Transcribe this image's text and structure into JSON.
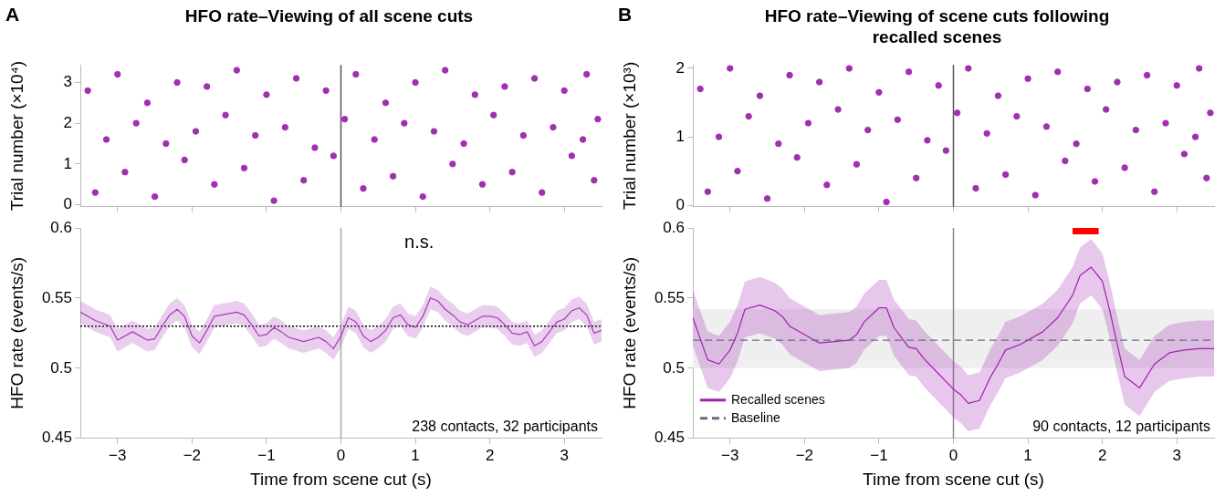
{
  "chart_data": [
    {
      "type": "scatter",
      "title": "HFO rate–Viewing of all scene cuts",
      "annotations": [
        "A"
      ],
      "ylabel": "Trial number (×10⁴)",
      "marker": "circle",
      "tick_labels": "y",
      "xlim": [
        -3.5,
        3.5
      ],
      "xticks": [
        {
          "value": -3,
          "label": null
        },
        {
          "value": -2,
          "label": null
        },
        {
          "value": -1,
          "label": null
        },
        {
          "value": 0,
          "label": null
        },
        {
          "value": 1,
          "label": null
        },
        {
          "value": 2,
          "label": null
        },
        {
          "value": 3,
          "label": null
        }
      ],
      "ylim": [
        -0.05,
        3.43
      ],
      "yticks": [
        0,
        1,
        2,
        3
      ],
      "ref_lines": [
        {
          "axis": "x",
          "value": 0,
          "color": "#555555"
        }
      ],
      "series": [
        {
          "color": "#a030b0",
          "x": [
            -3.3,
            -2.9,
            -2.5,
            -2.1,
            -1.7,
            -1.3,
            -0.9,
            -0.5,
            -0.1,
            0.3,
            0.7,
            1.1,
            1.5,
            1.9,
            2.3,
            2.7,
            3.1,
            3.4,
            -3.15,
            -2.75,
            -2.35,
            -1.95,
            -1.55,
            -1.15,
            -0.75,
            -0.35,
            0.05,
            0.45,
            0.85,
            1.25,
            1.65,
            2.05,
            2.45,
            2.85,
            3.25,
            3.45,
            -3.4,
            -3.0,
            -2.6,
            -2.2,
            -1.8,
            -1.4,
            -1.0,
            -0.6,
            -0.2,
            0.2,
            0.6,
            1.0,
            1.4,
            1.8,
            2.2,
            2.6,
            3.0,
            3.3
          ],
          "values": [
            0.3,
            0.8,
            0.2,
            1.1,
            0.5,
            0.9,
            0.1,
            0.6,
            1.2,
            0.4,
            0.7,
            0.2,
            1.0,
            0.5,
            0.8,
            0.3,
            1.2,
            0.6,
            1.6,
            2.0,
            1.5,
            1.8,
            2.2,
            1.7,
            1.9,
            1.4,
            2.1,
            1.6,
            2.0,
            1.8,
            1.5,
            2.2,
            1.7,
            1.9,
            1.6,
            2.1,
            2.8,
            3.2,
            2.5,
            3.0,
            2.9,
            3.3,
            2.7,
            3.1,
            2.8,
            3.2,
            2.5,
            3.0,
            3.3,
            2.7,
            2.9,
            3.1,
            2.8,
            3.2
          ]
        }
      ]
    },
    {
      "type": "line",
      "ylabel": "HFO rate (events/s)",
      "xlabel": "Time from scene cut (s)",
      "annotations": [
        "n.s.",
        "238 contacts, 32 participants"
      ],
      "xlim": [
        -3.5,
        3.5
      ],
      "xticks": [
        {
          "value": -3,
          "label": "−3"
        },
        {
          "value": -2,
          "label": "−2"
        },
        {
          "value": -1,
          "label": "−1"
        },
        0,
        1,
        2,
        3
      ],
      "ylim": [
        0.45,
        0.6
      ],
      "yticks": [
        0.45,
        0.5,
        0.55,
        0.6
      ],
      "ref_lines": [
        {
          "axis": "y",
          "value": 0.53,
          "color": "#000000",
          "line_style": "dotted"
        },
        {
          "axis": "x",
          "value": 0,
          "color": "#aaaaaa"
        }
      ],
      "series": [
        {
          "color": "#a83cb8",
          "x": [
            -3.5,
            -3.3,
            -3.1,
            -3.0,
            -2.8,
            -2.6,
            -2.5,
            -2.4,
            -2.3,
            -2.2,
            -2.1,
            -2.0,
            -1.9,
            -1.8,
            -1.7,
            -1.6,
            -1.4,
            -1.3,
            -1.2,
            -1.1,
            -1.0,
            -0.9,
            -0.8,
            -0.7,
            -0.5,
            -0.3,
            -0.2,
            -0.1,
            0,
            0.1,
            0.2,
            0.3,
            0.4,
            0.5,
            0.6,
            0.7,
            0.8,
            0.9,
            1.0,
            1.1,
            1.2,
            1.3,
            1.4,
            1.5,
            1.6,
            1.7,
            1.8,
            1.9,
            2.0,
            2.1,
            2.2,
            2.3,
            2.4,
            2.5,
            2.6,
            2.7,
            2.8,
            2.9,
            3.0,
            3.1,
            3.2,
            3.3,
            3.4,
            3.5
          ],
          "values": [
            0.54,
            0.534,
            0.53,
            0.52,
            0.526,
            0.52,
            0.521,
            0.53,
            0.538,
            0.542,
            0.537,
            0.523,
            0.518,
            0.527,
            0.537,
            0.538,
            0.54,
            0.538,
            0.531,
            0.523,
            0.524,
            0.529,
            0.526,
            0.522,
            0.519,
            0.522,
            0.519,
            0.514,
            0.523,
            0.536,
            0.533,
            0.523,
            0.519,
            0.522,
            0.527,
            0.536,
            0.538,
            0.531,
            0.529,
            0.537,
            0.55,
            0.548,
            0.542,
            0.538,
            0.533,
            0.531,
            0.534,
            0.537,
            0.537,
            0.536,
            0.531,
            0.525,
            0.524,
            0.526,
            0.516,
            0.519,
            0.526,
            0.533,
            0.535,
            0.541,
            0.543,
            0.538,
            0.525,
            0.527
          ],
          "lower": [
            0.532,
            0.526,
            0.522,
            0.512,
            0.518,
            0.512,
            0.513,
            0.522,
            0.53,
            0.534,
            0.529,
            0.515,
            0.51,
            0.519,
            0.529,
            0.53,
            0.532,
            0.53,
            0.523,
            0.515,
            0.516,
            0.521,
            0.518,
            0.514,
            0.511,
            0.514,
            0.511,
            0.506,
            0.515,
            0.528,
            0.525,
            0.515,
            0.511,
            0.514,
            0.519,
            0.528,
            0.53,
            0.523,
            0.521,
            0.529,
            0.542,
            0.54,
            0.534,
            0.53,
            0.525,
            0.523,
            0.526,
            0.529,
            0.529,
            0.528,
            0.523,
            0.517,
            0.516,
            0.518,
            0.508,
            0.511,
            0.518,
            0.525,
            0.527,
            0.533,
            0.535,
            0.53,
            0.517,
            0.519
          ],
          "upper": [
            0.548,
            0.542,
            0.538,
            0.528,
            0.534,
            0.528,
            0.529,
            0.538,
            0.546,
            0.55,
            0.545,
            0.531,
            0.526,
            0.535,
            0.545,
            0.546,
            0.548,
            0.546,
            0.539,
            0.531,
            0.532,
            0.537,
            0.534,
            0.53,
            0.527,
            0.53,
            0.527,
            0.522,
            0.531,
            0.544,
            0.541,
            0.531,
            0.527,
            0.53,
            0.535,
            0.544,
            0.546,
            0.539,
            0.537,
            0.545,
            0.558,
            0.556,
            0.55,
            0.546,
            0.541,
            0.539,
            0.542,
            0.545,
            0.545,
            0.544,
            0.539,
            0.533,
            0.532,
            0.534,
            0.524,
            0.527,
            0.534,
            0.541,
            0.543,
            0.549,
            0.551,
            0.546,
            0.533,
            0.535
          ]
        }
      ]
    },
    {
      "type": "scatter",
      "title": "HFO rate–Viewing of scene cuts following recalled scenes",
      "annotations": [
        "B"
      ],
      "ylabel": "Trial number (×10³)",
      "marker": "circle",
      "tick_labels": "y",
      "xlim": [
        -3.5,
        3.5
      ],
      "xticks": [
        {
          "value": -3,
          "label": null
        },
        {
          "value": -2,
          "label": null
        },
        {
          "value": -1,
          "label": null
        },
        {
          "value": 0,
          "label": null
        },
        {
          "value": 1,
          "label": null
        },
        {
          "value": 2,
          "label": null
        },
        {
          "value": 3,
          "label": null
        }
      ],
      "ylim": [
        -0.02,
        2.05
      ],
      "yticks": [
        0,
        1,
        2
      ],
      "ref_lines": [
        {
          "axis": "x",
          "value": 0,
          "color": "#555555"
        }
      ],
      "series": [
        {
          "color": "#a030b0",
          "x": [
            -3.3,
            -2.9,
            -2.5,
            -2.1,
            -1.7,
            -1.3,
            -0.9,
            -0.5,
            -0.1,
            0.3,
            0.7,
            1.1,
            1.5,
            1.9,
            2.3,
            2.7,
            3.1,
            3.4,
            -3.15,
            -2.75,
            -2.35,
            -1.95,
            -1.55,
            -1.15,
            -0.75,
            -0.35,
            0.05,
            0.45,
            0.85,
            1.25,
            1.65,
            2.05,
            2.45,
            2.85,
            3.25,
            3.45,
            -3.4,
            -3.0,
            -2.6,
            -2.2,
            -1.8,
            -1.4,
            -1.0,
            -0.6,
            -0.2,
            0.2,
            0.6,
            1.0,
            1.4,
            1.8,
            2.2,
            2.6,
            3.0,
            3.3
          ],
          "values": [
            0.2,
            0.5,
            0.1,
            0.7,
            0.3,
            0.6,
            0.05,
            0.4,
            0.8,
            0.25,
            0.45,
            0.15,
            0.65,
            0.35,
            0.55,
            0.2,
            0.75,
            0.4,
            1.0,
            1.3,
            0.9,
            1.2,
            1.4,
            1.1,
            1.25,
            0.95,
            1.35,
            1.05,
            1.3,
            1.15,
            0.9,
            1.4,
            1.1,
            1.2,
            1.0,
            1.35,
            1.7,
            2.0,
            1.6,
            1.9,
            1.8,
            2.0,
            1.65,
            1.95,
            1.75,
            2.0,
            1.6,
            1.85,
            1.95,
            1.7,
            1.8,
            1.9,
            1.75,
            2.0
          ]
        }
      ]
    },
    {
      "type": "line",
      "ylabel": "HFO rate (events/s)",
      "xlabel": "Time from scene cut (s)",
      "annotations": [
        "90 contacts, 12 participants"
      ],
      "legend": "bottom left",
      "xlim": [
        -3.5,
        3.5
      ],
      "xticks": [
        {
          "value": -3,
          "label": "−3"
        },
        {
          "value": -2,
          "label": "−2"
        },
        {
          "value": -1,
          "label": "−1"
        },
        0,
        1,
        2,
        3
      ],
      "ylim": [
        0.45,
        0.6
      ],
      "yticks": [
        0.45,
        0.5,
        0.55,
        0.6
      ],
      "ref_lines": [
        {
          "axis": "x",
          "value": 0,
          "color": "#888888"
        }
      ],
      "bands": [
        {
          "axis": "y",
          "from": 0.5,
          "to": 0.542,
          "color": "#efefef"
        }
      ],
      "series": [
        {
          "name": "Baseline",
          "color": "#6b6b80",
          "line_style": "dashed",
          "x": [
            -3.5,
            3.5
          ],
          "values": [
            0.52,
            0.52
          ]
        },
        {
          "color": "#ff0000",
          "x": [
            1.6,
            1.95
          ],
          "values": [
            0.598,
            0.598
          ]
        },
        {
          "name": "Recalled scenes",
          "color": "#a020b0",
          "x": [
            -3.5,
            -3.3,
            -3.15,
            -3.0,
            -2.9,
            -2.8,
            -2.6,
            -2.4,
            -2.3,
            -2.2,
            -2.0,
            -1.8,
            -1.6,
            -1.4,
            -1.3,
            -1.2,
            -1.0,
            -0.9,
            -0.8,
            -0.6,
            -0.5,
            -0.4,
            -0.2,
            0,
            0.1,
            0.2,
            0.35,
            0.5,
            0.6,
            0.7,
            0.9,
            1.0,
            1.2,
            1.4,
            1.6,
            1.7,
            1.85,
            2.0,
            2.1,
            2.2,
            2.3,
            2.5,
            2.7,
            2.9,
            3.1,
            3.3,
            3.5
          ],
          "values": [
            0.536,
            0.506,
            0.503,
            0.513,
            0.525,
            0.542,
            0.545,
            0.541,
            0.537,
            0.53,
            0.524,
            0.518,
            0.519,
            0.52,
            0.524,
            0.533,
            0.543,
            0.543,
            0.529,
            0.515,
            0.514,
            0.507,
            0.496,
            0.485,
            0.481,
            0.475,
            0.477,
            0.494,
            0.503,
            0.513,
            0.517,
            0.52,
            0.526,
            0.536,
            0.552,
            0.566,
            0.572,
            0.562,
            0.541,
            0.517,
            0.494,
            0.486,
            0.503,
            0.511,
            0.513,
            0.514,
            0.514
          ],
          "lower": [
            0.516,
            0.486,
            0.483,
            0.493,
            0.505,
            0.522,
            0.525,
            0.521,
            0.517,
            0.51,
            0.504,
            0.498,
            0.499,
            0.5,
            0.504,
            0.513,
            0.523,
            0.523,
            0.509,
            0.495,
            0.494,
            0.487,
            0.476,
            0.465,
            0.461,
            0.455,
            0.457,
            0.474,
            0.483,
            0.493,
            0.497,
            0.5,
            0.506,
            0.516,
            0.532,
            0.546,
            0.552,
            0.542,
            0.521,
            0.497,
            0.474,
            0.466,
            0.483,
            0.491,
            0.493,
            0.494,
            0.494
          ],
          "upper": [
            0.556,
            0.526,
            0.523,
            0.533,
            0.545,
            0.562,
            0.565,
            0.561,
            0.557,
            0.55,
            0.544,
            0.538,
            0.539,
            0.54,
            0.544,
            0.553,
            0.563,
            0.563,
            0.549,
            0.535,
            0.534,
            0.527,
            0.516,
            0.505,
            0.501,
            0.495,
            0.497,
            0.514,
            0.523,
            0.533,
            0.537,
            0.54,
            0.546,
            0.556,
            0.572,
            0.586,
            0.592,
            0.582,
            0.561,
            0.537,
            0.514,
            0.506,
            0.523,
            0.531,
            0.533,
            0.534,
            0.534
          ]
        }
      ]
    }
  ]
}
